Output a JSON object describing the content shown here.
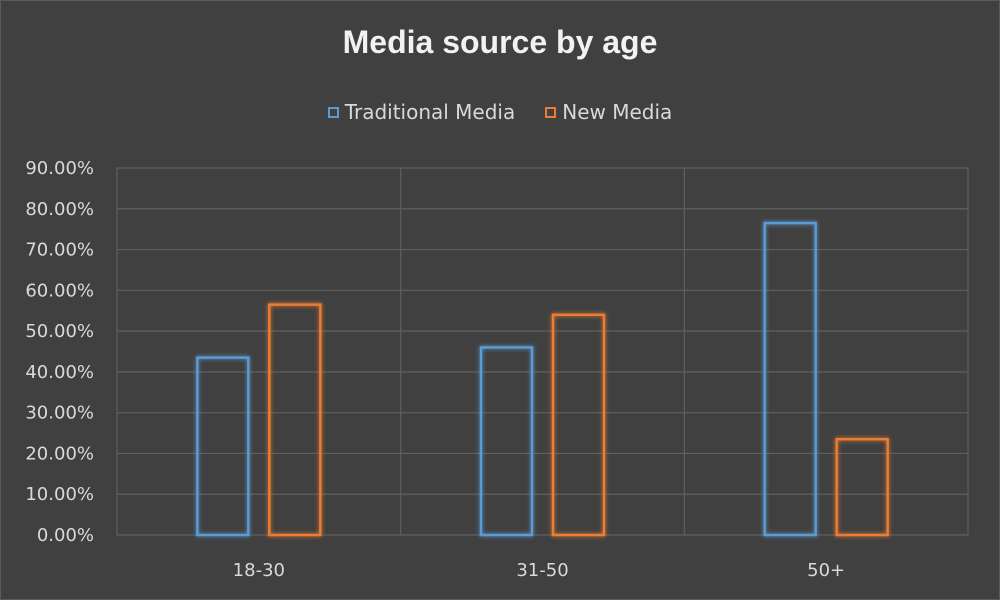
{
  "chart_data": {
    "type": "bar",
    "title": "Media source by age",
    "categories": [
      "18-30",
      "31-50",
      "50+"
    ],
    "series": [
      {
        "name": "Traditional Media",
        "color": "#5b9bd5",
        "values": [
          43.5,
          46.0,
          76.5
        ]
      },
      {
        "name": "New Media",
        "color": "#ed7d31",
        "values": [
          56.5,
          54.0,
          23.5
        ]
      }
    ],
    "ylim": [
      0,
      90
    ],
    "yticks": [
      "0.00%",
      "10.00%",
      "20.00%",
      "30.00%",
      "40.00%",
      "50.00%",
      "60.00%",
      "70.00%",
      "80.00%",
      "90.00%"
    ],
    "legend_position": "top",
    "grid": true
  }
}
